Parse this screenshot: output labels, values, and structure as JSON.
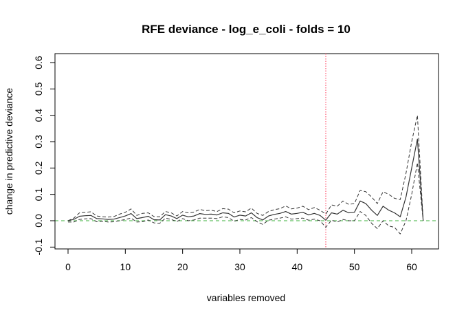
{
  "chart_data": {
    "type": "line",
    "title": "RFE deviance - log_e_coli - folds = 10",
    "xlabel": "variables removed",
    "ylabel": "change in predictive deviance",
    "xlim": [
      0,
      62
    ],
    "ylim": [
      -0.1,
      0.6
    ],
    "x_ticks": [
      0,
      10,
      20,
      30,
      40,
      50,
      60
    ],
    "y_ticks": [
      -0.1,
      0.0,
      0.1,
      0.2,
      0.3,
      0.4,
      0.5,
      0.6
    ],
    "x_tick_labels": [
      "0",
      "10",
      "20",
      "30",
      "40",
      "50",
      "60"
    ],
    "y_tick_labels": [
      "-0.1",
      "0.0",
      "0.1",
      "0.2",
      "0.3",
      "0.4",
      "0.5",
      "0.6"
    ],
    "grid": false,
    "x": [
      0,
      1,
      2,
      3,
      4,
      5,
      6,
      7,
      8,
      9,
      10,
      11,
      12,
      13,
      14,
      15,
      16,
      17,
      18,
      19,
      20,
      21,
      22,
      23,
      24,
      25,
      26,
      27,
      28,
      29,
      30,
      31,
      32,
      33,
      34,
      35,
      36,
      37,
      38,
      39,
      40,
      41,
      42,
      43,
      44,
      45,
      46,
      47,
      48,
      49,
      50,
      51,
      52,
      53,
      54,
      55,
      56,
      57,
      58,
      59,
      60,
      61,
      62
    ],
    "series": [
      {
        "style": "solid",
        "color": "#333333",
        "values": [
          0,
          0.005,
          0.017,
          0.019,
          0.02,
          0.008,
          0.007,
          0.005,
          0.006,
          0.012,
          0.018,
          0.027,
          0.008,
          0.012,
          0.017,
          0.004,
          0.003,
          0.023,
          0.018,
          0.008,
          0.021,
          0.015,
          0.018,
          0.027,
          0.024,
          0.025,
          0.022,
          0.03,
          0.028,
          0.014,
          0.021,
          0.018,
          0.03,
          0.012,
          0.003,
          0.018,
          0.024,
          0.028,
          0.035,
          0.025,
          0.028,
          0.032,
          0.022,
          0.028,
          0.02,
          0.002,
          0.03,
          0.025,
          0.04,
          0.03,
          0.032,
          0.075,
          0.065,
          0.04,
          0.02,
          0.055,
          0.04,
          0.03,
          0.015,
          0.09,
          0.2,
          0.31,
          0.0
        ]
      },
      {
        "style": "dashed",
        "color": "#333333",
        "values": [
          0,
          0.01,
          0.03,
          0.032,
          0.034,
          0.018,
          0.015,
          0.014,
          0.016,
          0.025,
          0.032,
          0.045,
          0.02,
          0.028,
          0.03,
          0.016,
          0.015,
          0.035,
          0.03,
          0.018,
          0.035,
          0.03,
          0.033,
          0.043,
          0.038,
          0.04,
          0.035,
          0.046,
          0.044,
          0.03,
          0.037,
          0.034,
          0.048,
          0.028,
          0.02,
          0.035,
          0.042,
          0.046,
          0.056,
          0.045,
          0.048,
          0.055,
          0.042,
          0.05,
          0.04,
          0.025,
          0.06,
          0.055,
          0.075,
          0.062,
          0.065,
          0.115,
          0.11,
          0.09,
          0.065,
          0.11,
          0.1,
          0.085,
          0.08,
          0.18,
          0.3,
          0.4,
          0.0
        ]
      },
      {
        "style": "dashed",
        "color": "#333333",
        "values": [
          -0.005,
          -0.005,
          0.005,
          0.007,
          0.008,
          -0.004,
          -0.002,
          -0.005,
          -0.004,
          0.0,
          0.005,
          0.01,
          -0.005,
          -0.004,
          0.003,
          -0.008,
          -0.01,
          0.01,
          0.005,
          -0.003,
          0.008,
          0.0,
          0.003,
          0.01,
          0.01,
          0.01,
          0.008,
          0.015,
          0.012,
          -0.002,
          0.005,
          0.003,
          0.012,
          -0.004,
          -0.014,
          0.002,
          0.006,
          0.01,
          0.015,
          0.006,
          0.008,
          0.01,
          0.002,
          0.006,
          0.0,
          -0.025,
          0.002,
          -0.005,
          0.005,
          0.0,
          0.0,
          0.035,
          0.02,
          -0.01,
          -0.03,
          0.0,
          -0.02,
          -0.025,
          -0.05,
          0.0,
          0.1,
          0.22,
          0.0
        ]
      }
    ],
    "reference_lines": [
      {
        "orientation": "vertical",
        "value": 45,
        "style": "dotted",
        "color": "#ff6f86"
      },
      {
        "orientation": "horizontal",
        "value": 0,
        "style": "dashed",
        "color": "#7fcc7f"
      }
    ]
  }
}
